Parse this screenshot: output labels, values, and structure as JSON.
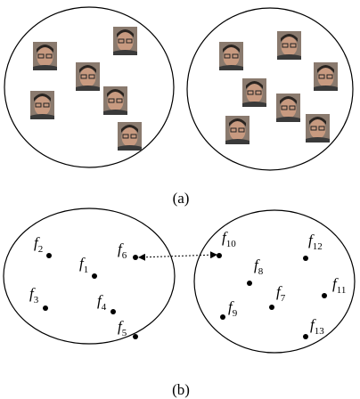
{
  "captions": {
    "a": "(a)",
    "b": "(b)"
  },
  "nodes": [
    {
      "base": "f",
      "index": "1"
    },
    {
      "base": "f",
      "index": "2"
    },
    {
      "base": "f",
      "index": "3"
    },
    {
      "base": "f",
      "index": "4"
    },
    {
      "base": "f",
      "index": "5"
    },
    {
      "base": "f",
      "index": "6"
    },
    {
      "base": "f",
      "index": "7"
    },
    {
      "base": "f",
      "index": "8"
    },
    {
      "base": "f",
      "index": "9"
    },
    {
      "base": "f",
      "index": "10"
    },
    {
      "base": "f",
      "index": "11"
    },
    {
      "base": "f",
      "index": "12"
    },
    {
      "base": "f",
      "index": "13"
    }
  ]
}
